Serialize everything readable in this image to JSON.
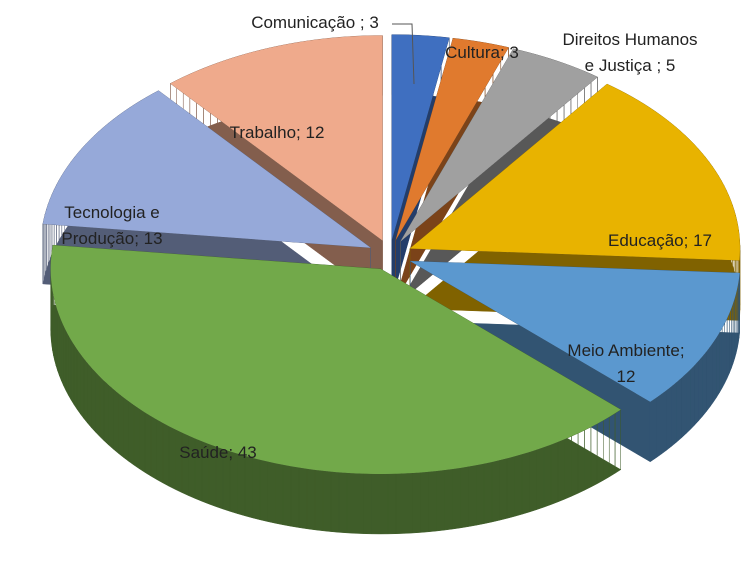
{
  "chart_data": {
    "type": "pie3d",
    "labels": [
      "Comunicação ; 3",
      "Cultura; 3",
      "Direitos Humanos\ne Justiça ; 5",
      "Educação; 17",
      "Meio Ambiente;\n12",
      "Saúde; 43",
      "Tecnologia e\nProdução; 13",
      "Trabalho; 12"
    ],
    "values": [
      3,
      3,
      5,
      17,
      12,
      43,
      13,
      12
    ],
    "colors": [
      "#3f6fc0",
      "#e07a2e",
      "#a0a0a0",
      "#e8b300",
      "#5b98cf",
      "#72a94a",
      "#96a9d9",
      "#efaa8c"
    ]
  }
}
